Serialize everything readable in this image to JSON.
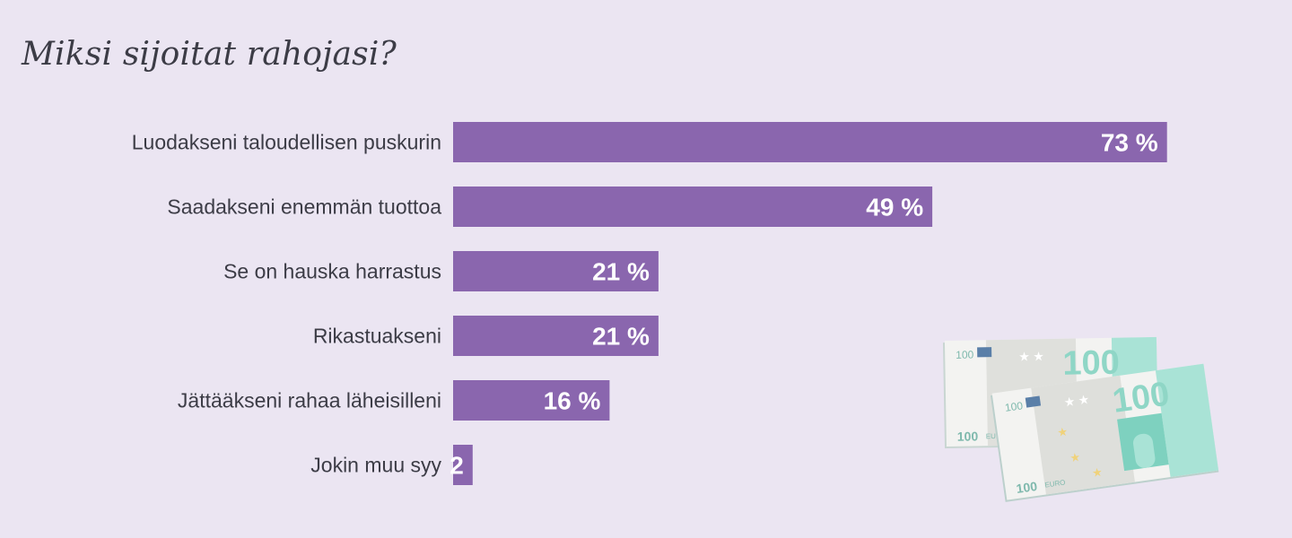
{
  "title": "Miksi sijoitat rahojasi?",
  "colors": {
    "bar": "#8a66ae",
    "background": "#ebe5f2",
    "text": "#3c3c46"
  },
  "chart_data": {
    "type": "bar",
    "orientation": "horizontal",
    "title": "Miksi sijoitat rahojasi?",
    "categories": [
      "Luodakseni taloudellisen puskurin",
      "Saadakseni enemmän tuottoa",
      "Se on hauska harrastus",
      "Rikastuakseni",
      "Jättääkseni rahaa läheisilleni",
      "Jokin muu syy"
    ],
    "values": [
      73,
      49,
      21,
      21,
      16,
      2
    ],
    "value_labels": [
      "73 %",
      "49 %",
      "21 %",
      "21 %",
      "16 %",
      "2"
    ],
    "unit": "%",
    "xlim": [
      0,
      100
    ],
    "grid": false,
    "legend": "none"
  },
  "illustration": {
    "icon": "euro-banknotes-icon",
    "note_denomination": "100",
    "note_currency": "EURO"
  }
}
